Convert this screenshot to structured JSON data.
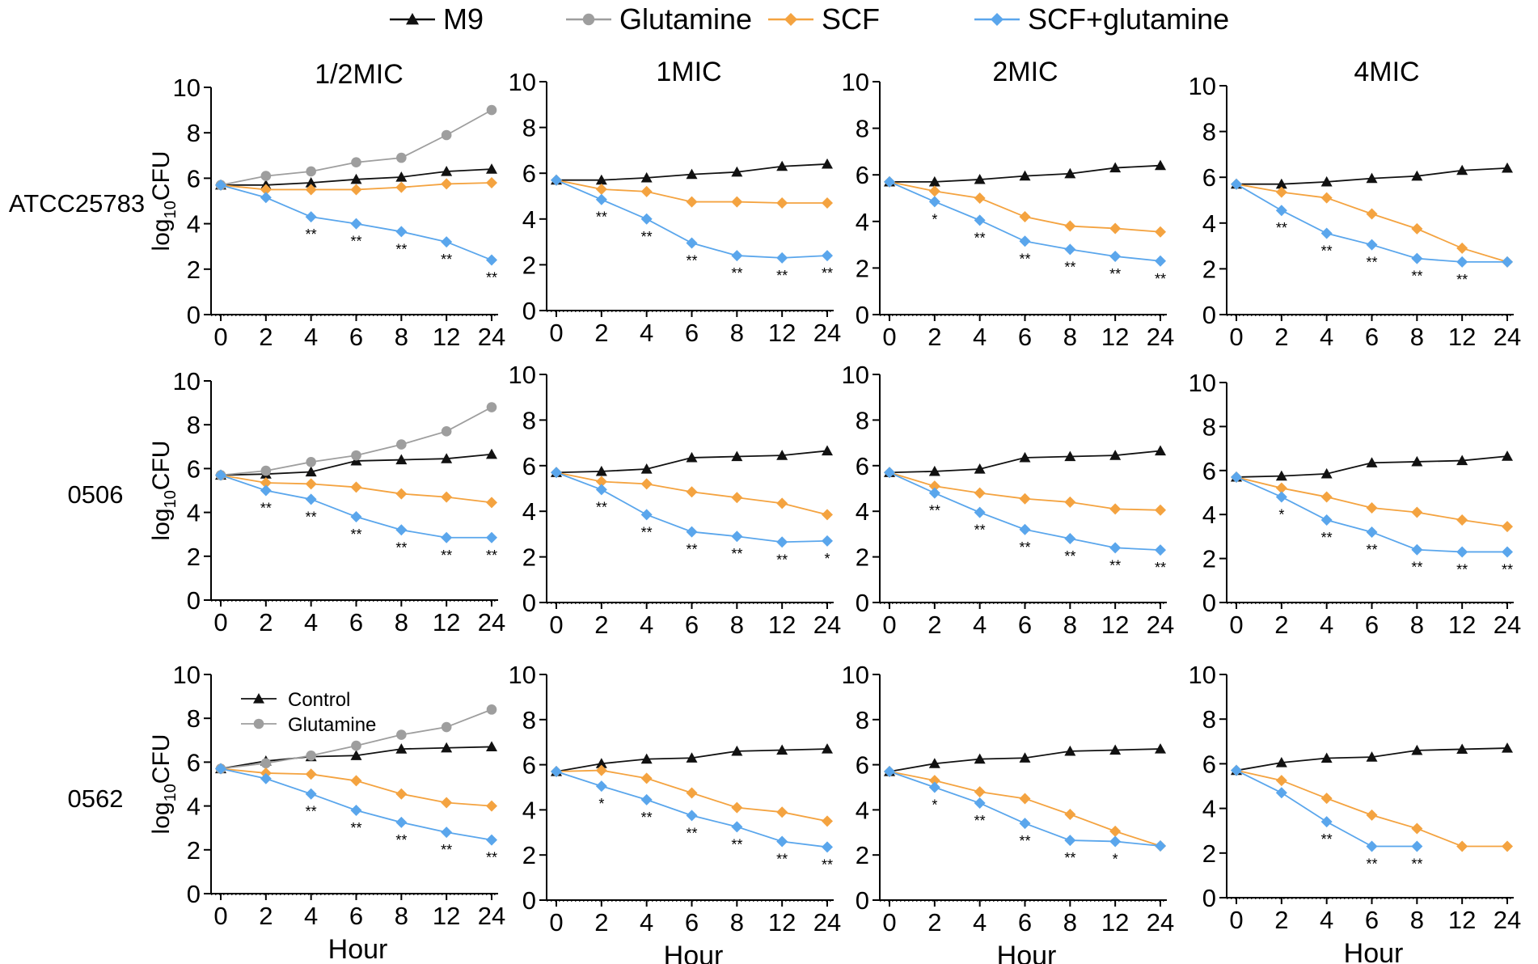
{
  "figure": {
    "legend": [
      {
        "name": "M9",
        "color": "#111111",
        "marker": "triangle"
      },
      {
        "name": "Glutamine",
        "color": "#9e9e9e",
        "marker": "circle"
      },
      {
        "name": "SCF",
        "color": "#f4a340",
        "marker": "diamond"
      },
      {
        "name": "SCF+glutamine",
        "color": "#5aa6ec",
        "marker": "diamond"
      }
    ],
    "columns": [
      "1/2MIC",
      "1MIC",
      "2MIC",
      "4MIC"
    ],
    "rows": [
      "ATCC25783",
      "0506",
      "0562"
    ],
    "ylabel_base": "log",
    "ylabel_sub": "10",
    "ylabel_unit": "CFU",
    "xlabel": "Hour",
    "inset_legend": [
      {
        "name": "Control",
        "color": "#111111",
        "marker": "triangle"
      },
      {
        "name": "Glutamine",
        "color": "#9e9e9e",
        "marker": "circle"
      }
    ]
  },
  "chart_data": [
    {
      "type": "line",
      "row": "ATCC25783",
      "column": "1/2MIC",
      "x": [
        0,
        2,
        4,
        6,
        8,
        12,
        24
      ],
      "ylim": [
        0,
        10
      ],
      "yticks": [
        0,
        2,
        4,
        6,
        8,
        10
      ],
      "series": [
        {
          "name": "M9",
          "values": [
            5.7,
            5.7,
            5.8,
            5.95,
            6.05,
            6.3,
            6.4
          ]
        },
        {
          "name": "Glutamine",
          "values": [
            5.7,
            6.1,
            6.3,
            6.7,
            6.9,
            7.9,
            9.0
          ]
        },
        {
          "name": "SCF",
          "values": [
            5.7,
            5.5,
            5.5,
            5.5,
            5.6,
            5.75,
            5.8
          ]
        },
        {
          "name": "SCF+glutamine",
          "values": [
            5.7,
            5.15,
            4.3,
            4.0,
            3.65,
            3.2,
            2.4
          ],
          "significance": [
            "",
            "",
            "**",
            "**",
            "**",
            "**",
            "**"
          ]
        }
      ]
    },
    {
      "type": "line",
      "row": "ATCC25783",
      "column": "1MIC",
      "x": [
        0,
        2,
        4,
        6,
        8,
        12,
        24
      ],
      "ylim": [
        0,
        10
      ],
      "yticks": [
        0,
        2,
        4,
        6,
        8,
        10
      ],
      "series": [
        {
          "name": "M9",
          "values": [
            5.7,
            5.7,
            5.8,
            5.95,
            6.05,
            6.3,
            6.4
          ]
        },
        {
          "name": "SCF",
          "values": [
            5.7,
            5.3,
            5.2,
            4.75,
            4.75,
            4.7,
            4.7
          ]
        },
        {
          "name": "SCF+glutamine",
          "values": [
            5.7,
            4.85,
            4.0,
            2.95,
            2.4,
            2.3,
            2.4
          ],
          "significance": [
            "",
            "**",
            "**",
            "**",
            "**",
            "**",
            "**"
          ]
        }
      ]
    },
    {
      "type": "line",
      "row": "ATCC25783",
      "column": "2MIC",
      "x": [
        0,
        2,
        4,
        6,
        8,
        12,
        24
      ],
      "ylim": [
        0,
        10
      ],
      "yticks": [
        0,
        2,
        4,
        6,
        8,
        10
      ],
      "series": [
        {
          "name": "M9",
          "values": [
            5.7,
            5.7,
            5.8,
            5.95,
            6.05,
            6.3,
            6.4
          ]
        },
        {
          "name": "SCF",
          "values": [
            5.7,
            5.3,
            5.0,
            4.2,
            3.8,
            3.7,
            3.55
          ]
        },
        {
          "name": "SCF+glutamine",
          "values": [
            5.7,
            4.85,
            4.05,
            3.15,
            2.8,
            2.5,
            2.3
          ],
          "significance": [
            "",
            "*",
            "**",
            "**",
            "**",
            "**",
            "**"
          ]
        }
      ]
    },
    {
      "type": "line",
      "row": "ATCC25783",
      "column": "4MIC",
      "x": [
        0,
        2,
        4,
        6,
        8,
        12,
        24
      ],
      "ylim": [
        0,
        10
      ],
      "yticks": [
        0,
        2,
        4,
        6,
        8,
        10
      ],
      "series": [
        {
          "name": "M9",
          "values": [
            5.7,
            5.7,
            5.8,
            5.95,
            6.05,
            6.3,
            6.4
          ]
        },
        {
          "name": "SCF",
          "values": [
            5.7,
            5.35,
            5.1,
            4.4,
            3.75,
            2.9,
            2.3
          ]
        },
        {
          "name": "SCF+glutamine",
          "values": [
            5.7,
            4.55,
            3.55,
            3.05,
            2.45,
            2.3,
            2.3
          ],
          "significance": [
            "",
            "**",
            "**",
            "**",
            "**",
            "**",
            ""
          ]
        }
      ]
    },
    {
      "type": "line",
      "row": "0506",
      "column": "1/2MIC",
      "x": [
        0,
        2,
        4,
        6,
        8,
        12,
        24
      ],
      "ylim": [
        0,
        10
      ],
      "yticks": [
        0,
        2,
        4,
        6,
        8,
        10
      ],
      "series": [
        {
          "name": "M9",
          "values": [
            5.7,
            5.75,
            5.85,
            6.35,
            6.4,
            6.45,
            6.65
          ]
        },
        {
          "name": "Glutamine",
          "values": [
            5.7,
            5.9,
            6.3,
            6.6,
            7.1,
            7.7,
            8.8
          ]
        },
        {
          "name": "SCF",
          "values": [
            5.7,
            5.35,
            5.3,
            5.15,
            4.85,
            4.7,
            4.45
          ]
        },
        {
          "name": "SCF+glutamine",
          "values": [
            5.7,
            5.0,
            4.6,
            3.8,
            3.2,
            2.85,
            2.85
          ],
          "significance": [
            "",
            "**",
            "**",
            "**",
            "**",
            "**",
            "**"
          ]
        }
      ]
    },
    {
      "type": "line",
      "row": "0506",
      "column": "1MIC",
      "x": [
        0,
        2,
        4,
        6,
        8,
        12,
        24
      ],
      "ylim": [
        0,
        10
      ],
      "yticks": [
        0,
        2,
        4,
        6,
        8,
        10
      ],
      "series": [
        {
          "name": "M9",
          "values": [
            5.7,
            5.75,
            5.85,
            6.35,
            6.4,
            6.45,
            6.65
          ]
        },
        {
          "name": "SCF",
          "values": [
            5.7,
            5.3,
            5.2,
            4.85,
            4.6,
            4.35,
            3.85
          ]
        },
        {
          "name": "SCF+glutamine",
          "values": [
            5.7,
            4.95,
            3.85,
            3.1,
            2.9,
            2.65,
            2.7
          ],
          "significance": [
            "",
            "**",
            "**",
            "**",
            "**",
            "**",
            "*"
          ]
        }
      ]
    },
    {
      "type": "line",
      "row": "0506",
      "column": "2MIC",
      "x": [
        0,
        2,
        4,
        6,
        8,
        12,
        24
      ],
      "ylim": [
        0,
        10
      ],
      "yticks": [
        0,
        2,
        4,
        6,
        8,
        10
      ],
      "series": [
        {
          "name": "M9",
          "values": [
            5.7,
            5.75,
            5.85,
            6.35,
            6.4,
            6.45,
            6.65
          ]
        },
        {
          "name": "SCF",
          "values": [
            5.7,
            5.1,
            4.8,
            4.55,
            4.4,
            4.1,
            4.05
          ]
        },
        {
          "name": "SCF+glutamine",
          "values": [
            5.7,
            4.8,
            3.95,
            3.2,
            2.8,
            2.4,
            2.3
          ],
          "significance": [
            "",
            "**",
            "**",
            "**",
            "**",
            "**",
            "**"
          ]
        }
      ]
    },
    {
      "type": "line",
      "row": "0506",
      "column": "4MIC",
      "x": [
        0,
        2,
        4,
        6,
        8,
        12,
        24
      ],
      "ylim": [
        0,
        10
      ],
      "yticks": [
        0,
        2,
        4,
        6,
        8,
        10
      ],
      "series": [
        {
          "name": "M9",
          "values": [
            5.7,
            5.75,
            5.85,
            6.35,
            6.4,
            6.45,
            6.65
          ]
        },
        {
          "name": "SCF",
          "values": [
            5.7,
            5.2,
            4.8,
            4.3,
            4.1,
            3.75,
            3.45
          ]
        },
        {
          "name": "SCF+glutamine",
          "values": [
            5.7,
            4.8,
            3.75,
            3.2,
            2.4,
            2.3,
            2.3
          ],
          "significance": [
            "",
            "*",
            "**",
            "**",
            "**",
            "**",
            "**"
          ]
        }
      ]
    },
    {
      "type": "line",
      "row": "0562",
      "column": "1/2MIC",
      "x": [
        0,
        2,
        4,
        6,
        8,
        12,
        24
      ],
      "ylim": [
        0,
        10
      ],
      "yticks": [
        0,
        2,
        4,
        6,
        8,
        10
      ],
      "series": [
        {
          "name": "Control",
          "values": [
            5.7,
            6.05,
            6.25,
            6.3,
            6.6,
            6.65,
            6.7
          ]
        },
        {
          "name": "Glutamine",
          "values": [
            5.7,
            5.95,
            6.3,
            6.75,
            7.25,
            7.6,
            8.4
          ]
        },
        {
          "name": "SCF",
          "values": [
            5.7,
            5.5,
            5.45,
            5.15,
            4.55,
            4.15,
            4.0
          ]
        },
        {
          "name": "SCF+glutamine",
          "values": [
            5.7,
            5.25,
            4.55,
            3.8,
            3.25,
            2.8,
            2.45
          ],
          "significance": [
            "",
            "",
            "**",
            "**",
            "**",
            "**",
            "**"
          ]
        }
      ]
    },
    {
      "type": "line",
      "row": "0562",
      "column": "1MIC",
      "x": [
        0,
        2,
        4,
        6,
        8,
        12,
        24
      ],
      "ylim": [
        0,
        10
      ],
      "yticks": [
        0,
        2,
        4,
        6,
        8,
        10
      ],
      "series": [
        {
          "name": "M9",
          "values": [
            5.7,
            6.05,
            6.25,
            6.3,
            6.6,
            6.65,
            6.7
          ]
        },
        {
          "name": "SCF",
          "values": [
            5.7,
            5.75,
            5.4,
            4.75,
            4.1,
            3.9,
            3.5
          ]
        },
        {
          "name": "SCF+glutamine",
          "values": [
            5.7,
            5.05,
            4.45,
            3.75,
            3.25,
            2.6,
            2.35
          ],
          "significance": [
            "",
            "*",
            "**",
            "**",
            "**",
            "**",
            "**"
          ]
        }
      ]
    },
    {
      "type": "line",
      "row": "0562",
      "column": "2MIC",
      "x": [
        0,
        2,
        4,
        6,
        8,
        12,
        24
      ],
      "ylim": [
        0,
        10
      ],
      "yticks": [
        0,
        2,
        4,
        6,
        8,
        10
      ],
      "series": [
        {
          "name": "M9",
          "values": [
            5.7,
            6.05,
            6.25,
            6.3,
            6.6,
            6.65,
            6.7
          ]
        },
        {
          "name": "SCF",
          "values": [
            5.7,
            5.3,
            4.8,
            4.5,
            3.8,
            3.05,
            2.4
          ]
        },
        {
          "name": "SCF+glutamine",
          "values": [
            5.7,
            5.0,
            4.3,
            3.4,
            2.65,
            2.6,
            2.4
          ],
          "significance": [
            "",
            "*",
            "**",
            "**",
            "**",
            "*",
            ""
          ]
        }
      ]
    },
    {
      "type": "line",
      "row": "0562",
      "column": "4MIC",
      "x": [
        0,
        2,
        4,
        6,
        8,
        12,
        24
      ],
      "ylim": [
        0,
        10
      ],
      "yticks": [
        0,
        2,
        4,
        6,
        8,
        10
      ],
      "series": [
        {
          "name": "M9",
          "values": [
            5.7,
            6.05,
            6.25,
            6.3,
            6.6,
            6.65,
            6.7
          ]
        },
        {
          "name": "SCF",
          "values": [
            5.7,
            5.25,
            4.45,
            3.7,
            3.1,
            2.3,
            2.3
          ]
        },
        {
          "name": "SCF+glutamine",
          "values": [
            5.7,
            4.7,
            3.4,
            2.3,
            2.3,
            null,
            null
          ],
          "significance": [
            "",
            "",
            "**",
            "**",
            "**",
            "",
            ""
          ]
        }
      ]
    }
  ]
}
